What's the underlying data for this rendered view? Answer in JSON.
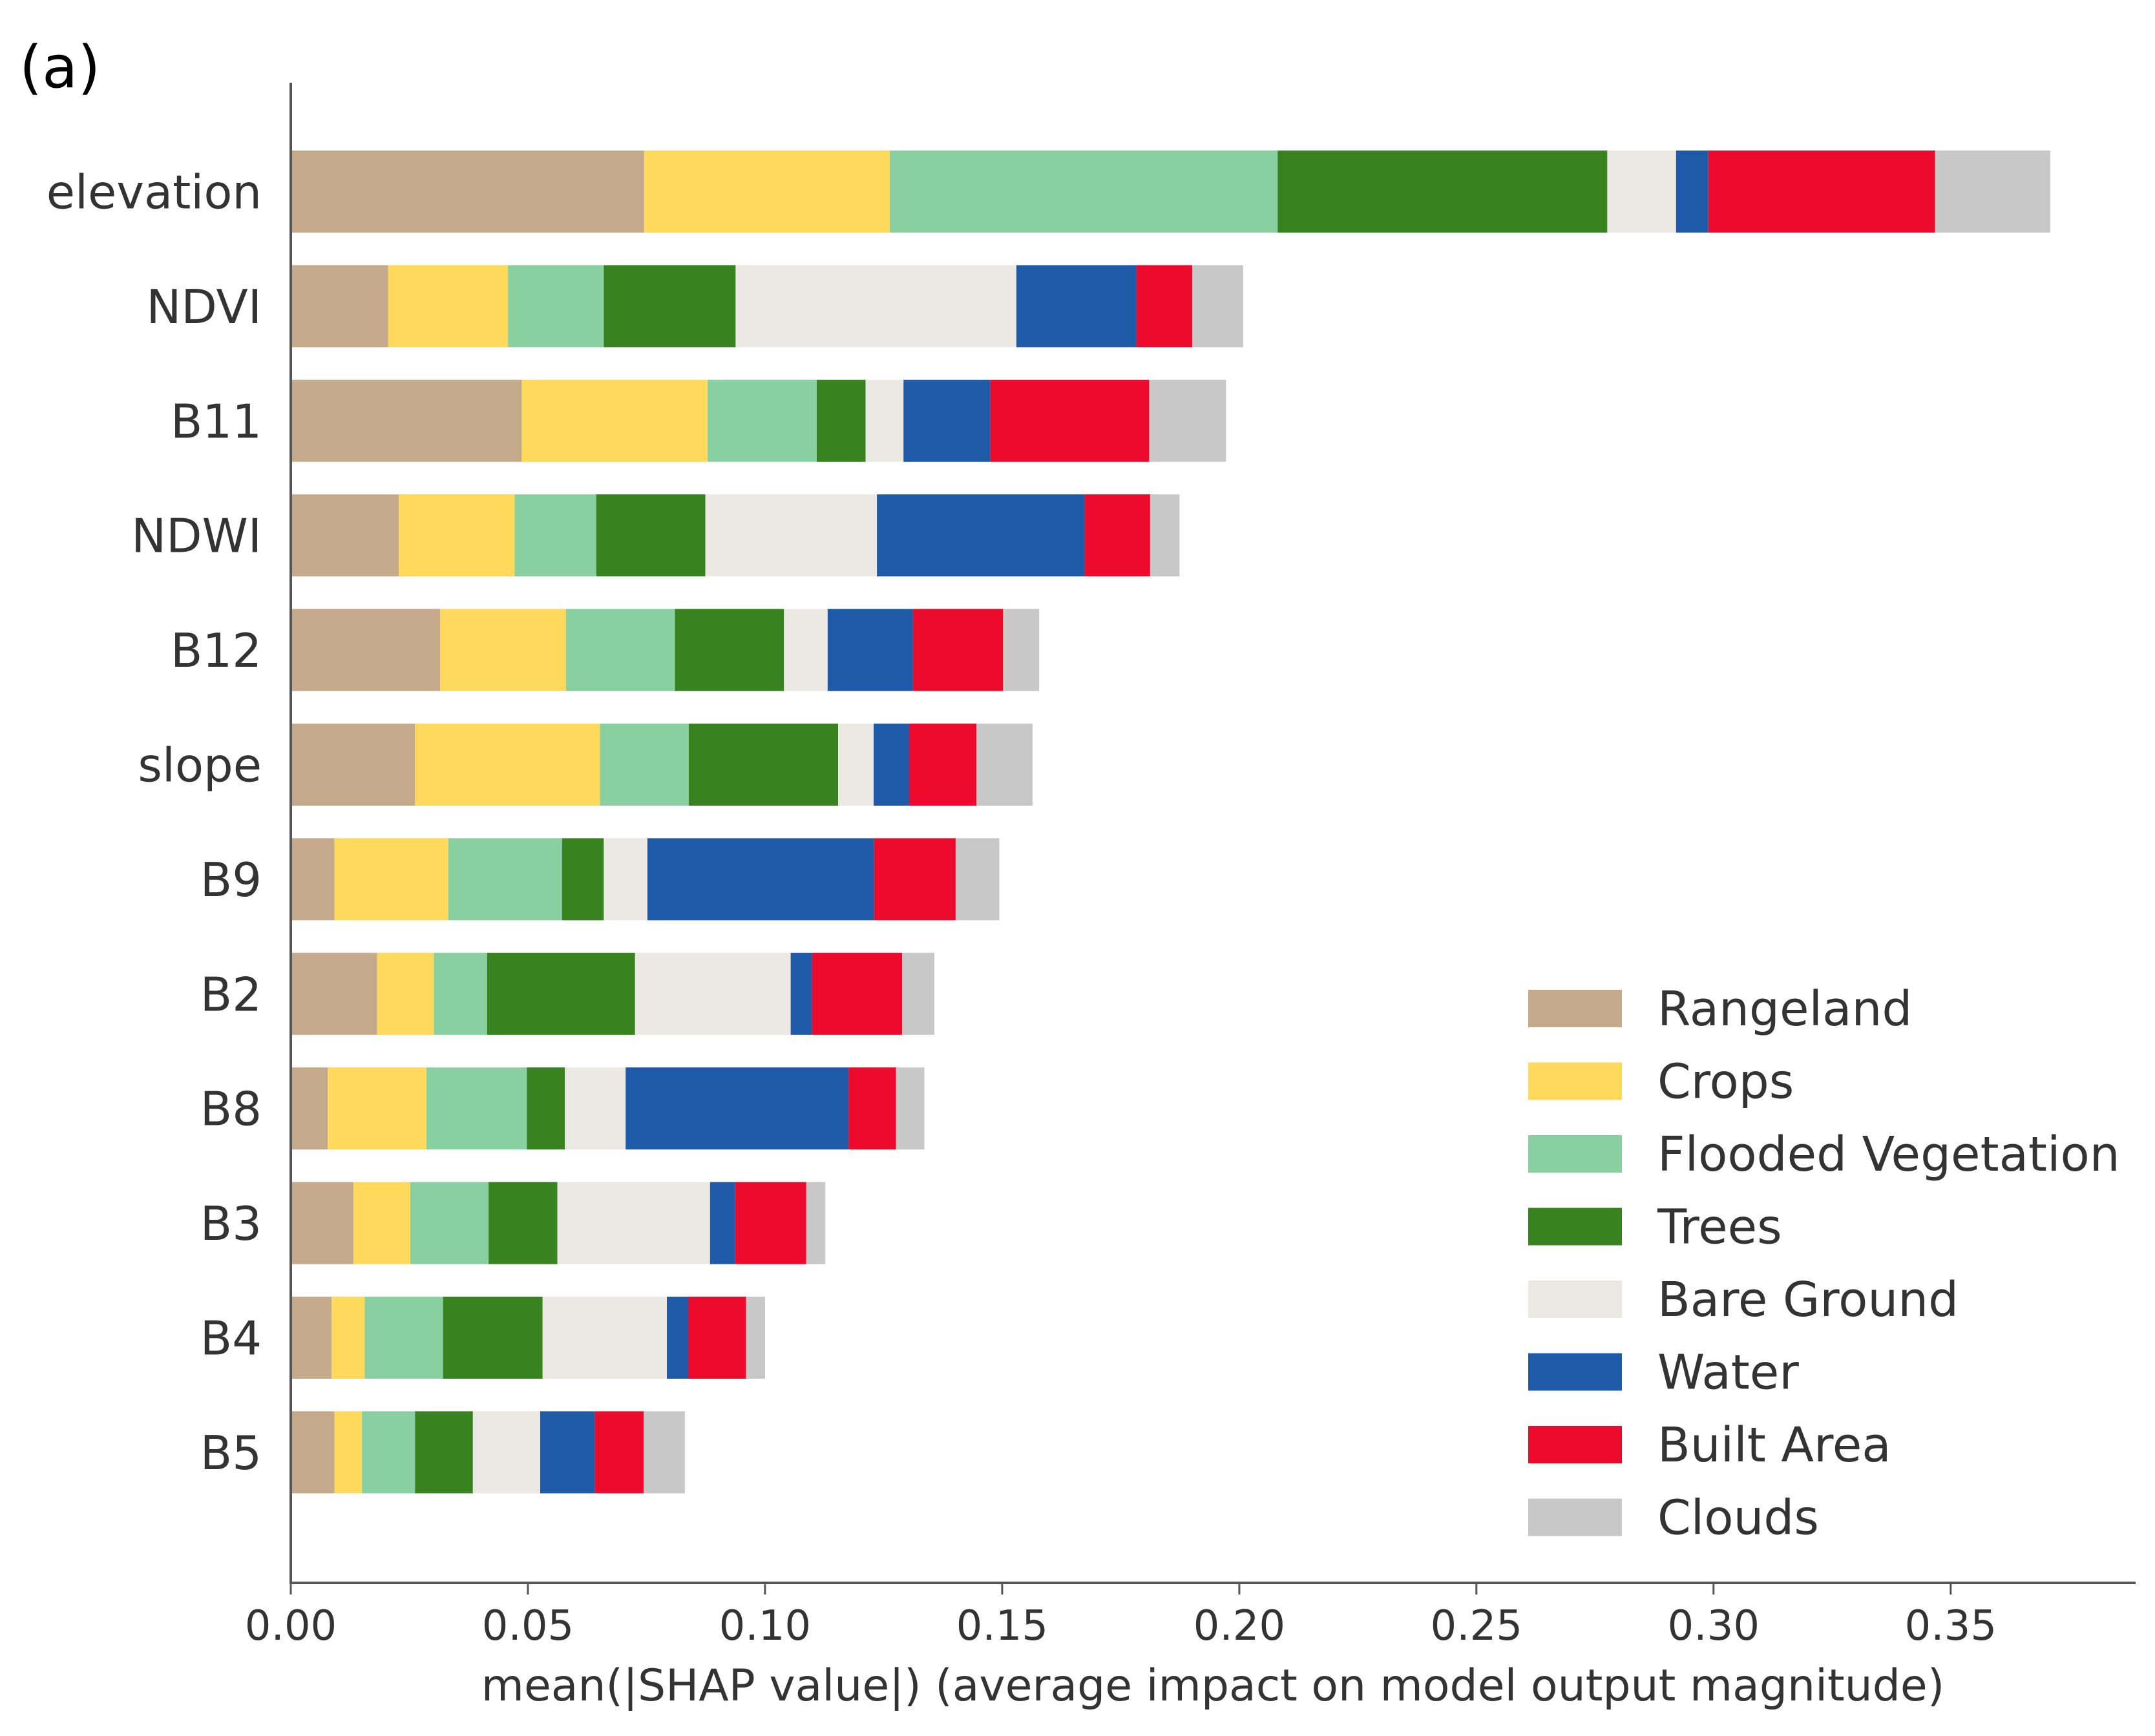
{
  "panel_label": "(a)",
  "chart_data": {
    "type": "bar",
    "orientation": "horizontal",
    "stacked": true,
    "title": "",
    "xlabel": "mean(|SHAP value|) (average impact on model output magnitude)",
    "ylabel": "",
    "xlim": [
      0,
      0.389
    ],
    "xticks": [
      0.0,
      0.05,
      0.1,
      0.15,
      0.2,
      0.25,
      0.3,
      0.35
    ],
    "xtick_labels": [
      "0.00",
      "0.05",
      "0.10",
      "0.15",
      "0.20",
      "0.25",
      "0.30",
      "0.35"
    ],
    "legend_position": "lower-right",
    "categories": [
      "elevation",
      "NDVI",
      "B11",
      "NDWI",
      "B12",
      "slope",
      "B9",
      "B2",
      "B8",
      "B3",
      "B4",
      "B5"
    ],
    "series": [
      {
        "name": "Rangeland",
        "color": "#c4a98a",
        "values": [
          0.0745,
          0.0205,
          0.0487,
          0.0228,
          0.0315,
          0.0262,
          0.0092,
          0.0182,
          0.0078,
          0.0132,
          0.0086,
          0.0092
        ]
      },
      {
        "name": "Crops",
        "color": "#ffd95c",
        "values": [
          0.0518,
          0.0253,
          0.0392,
          0.0244,
          0.0265,
          0.039,
          0.024,
          0.012,
          0.0208,
          0.012,
          0.007,
          0.0058
        ]
      },
      {
        "name": "Flooded Vegetation",
        "color": "#88d0a0",
        "values": [
          0.0818,
          0.0202,
          0.023,
          0.0172,
          0.023,
          0.0187,
          0.024,
          0.0112,
          0.0212,
          0.0165,
          0.0165,
          0.0112
        ]
      },
      {
        "name": "Trees",
        "color": "#38821f",
        "values": [
          0.0695,
          0.0278,
          0.0103,
          0.023,
          0.023,
          0.0315,
          0.0088,
          0.0312,
          0.008,
          0.0145,
          0.021,
          0.0122
        ]
      },
      {
        "name": "Bare Ground",
        "color": "#ece9e4",
        "values": [
          0.0145,
          0.0592,
          0.008,
          0.0362,
          0.0092,
          0.0075,
          0.0092,
          0.0328,
          0.0128,
          0.0322,
          0.0262,
          0.0142
        ]
      },
      {
        "name": "Water",
        "color": "#1e5aa8",
        "values": [
          0.0068,
          0.0253,
          0.0183,
          0.0438,
          0.018,
          0.0075,
          0.0478,
          0.0045,
          0.047,
          0.0053,
          0.0045,
          0.0115
        ]
      },
      {
        "name": "Built Area",
        "color": "#ec0b2c",
        "values": [
          0.0478,
          0.0118,
          0.0335,
          0.0138,
          0.019,
          0.0142,
          0.0172,
          0.019,
          0.01,
          0.015,
          0.0122,
          0.0103
        ]
      },
      {
        "name": "Clouds",
        "color": "#c8c8c8",
        "values": [
          0.0243,
          0.0107,
          0.0162,
          0.0062,
          0.0076,
          0.0118,
          0.0092,
          0.0068,
          0.006,
          0.004,
          0.004,
          0.0087
        ]
      }
    ]
  }
}
